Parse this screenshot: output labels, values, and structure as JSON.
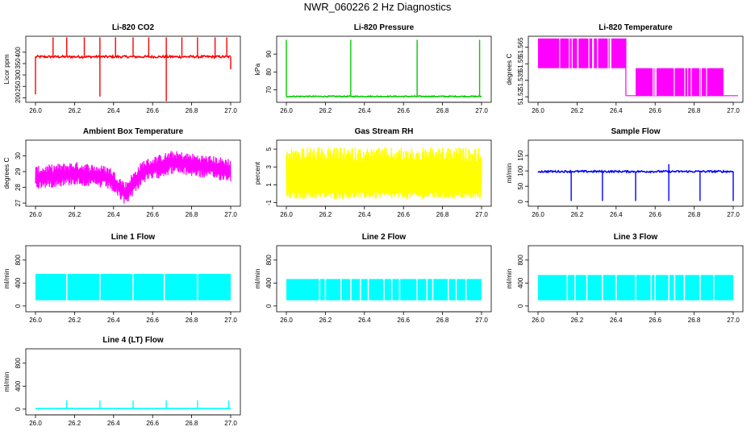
{
  "figure": {
    "title": "NWR_060226  2 Hz Diagnostics"
  },
  "chart_data": [
    {
      "id": "co2",
      "type": "line",
      "title": "Li-820 CO2",
      "ylabel": "Licor ppm",
      "color": "#ff0000",
      "xlim": [
        26.0,
        27.0
      ],
      "ylim": [
        180,
        470
      ],
      "xticks": [
        "26.0",
        "26.2",
        "26.4",
        "26.6",
        "26.8",
        "27.0"
      ],
      "yticks": [
        {
          "v": 200,
          "label": "200"
        },
        {
          "v": 250,
          "label": "250"
        },
        {
          "v": 300,
          "label": "300"
        },
        {
          "v": 350,
          "label": "350"
        },
        {
          "v": 400,
          "label": "400"
        }
      ],
      "series": {
        "kind": "base_spikes",
        "base": 380,
        "noise": 5,
        "spikes_up": [
          26.09,
          26.16,
          26.25,
          26.33,
          26.41,
          26.5,
          26.58,
          26.67,
          26.75,
          26.83,
          26.92,
          26.98
        ],
        "spike_up_to": 465,
        "spikes_down": [
          {
            "x": 26.0,
            "y": 215
          },
          {
            "x": 26.33,
            "y": 205
          },
          {
            "x": 26.67,
            "y": 185
          },
          {
            "x": 27.0,
            "y": 325
          }
        ]
      }
    },
    {
      "id": "pressure",
      "type": "line",
      "title": "Li-820 Pressure",
      "ylabel": "kPa",
      "color": "#00cc00",
      "xlim": [
        26.0,
        27.0
      ],
      "ylim": [
        63,
        100
      ],
      "xticks": [
        "26.0",
        "26.2",
        "26.4",
        "26.6",
        "26.8",
        "27.0"
      ],
      "yticks": [
        {
          "v": 70,
          "label": "70"
        },
        {
          "v": 80,
          "label": "80"
        },
        {
          "v": 90,
          "label": "90"
        }
      ],
      "series": {
        "kind": "base_spikes",
        "base": 66.3,
        "noise": 0.3,
        "spikes_up": [
          26.0,
          26.33,
          26.67,
          26.99
        ],
        "spike_up_to": 98,
        "spikes_down": []
      }
    },
    {
      "id": "temp820",
      "type": "step",
      "title": "Li-820 Temperature",
      "ylabel": "degrees C",
      "color": "#ff00ff",
      "xlim": [
        26.0,
        27.0
      ],
      "ylim": [
        51.515,
        51.575
      ],
      "xticks": [
        "26.0",
        "26.2",
        "26.4",
        "26.6",
        "26.8",
        "27.0"
      ],
      "yticks": [
        {
          "v": 51.52,
          "label": "51.52"
        },
        {
          "v": 51.535,
          "label": "51.535"
        },
        {
          "v": 51.55,
          "label": "51.55"
        },
        {
          "v": 51.565,
          "label": "51.565"
        }
      ],
      "series": {
        "kind": "two_level",
        "high": 51.573,
        "mid": 51.546,
        "low": 51.521,
        "switch_x": 26.45,
        "post_start": 26.5,
        "post_end": 26.95
      }
    },
    {
      "id": "ambient",
      "type": "line",
      "title": "Ambient Box Temperature",
      "ylabel": "degrees C",
      "color": "#ff00ff",
      "xlim": [
        26.0,
        27.0
      ],
      "ylim": [
        26.8,
        31.0
      ],
      "xticks": [
        "26.0",
        "26.2",
        "26.4",
        "26.6",
        "26.8",
        "27.0"
      ],
      "yticks": [
        {
          "v": 27,
          "label": "27"
        },
        {
          "v": 28,
          "label": "28"
        },
        {
          "v": 29,
          "label": "29"
        },
        {
          "v": 30,
          "label": "30"
        }
      ],
      "series": {
        "kind": "noise_trend",
        "center": [
          [
            26.0,
            28.6
          ],
          [
            26.2,
            28.9
          ],
          [
            26.38,
            28.6
          ],
          [
            26.46,
            27.6
          ],
          [
            26.55,
            29.0
          ],
          [
            26.7,
            29.6
          ],
          [
            27.0,
            29.1
          ]
        ],
        "amp": 0.75
      }
    },
    {
      "id": "rh",
      "type": "line",
      "title": "Gas Stream RH",
      "ylabel": "percent",
      "color": "#ffff00",
      "xlim": [
        26.0,
        27.0
      ],
      "ylim": [
        -1.4,
        6.0
      ],
      "xticks": [
        "26.0",
        "26.2",
        "26.4",
        "26.6",
        "26.8",
        "27.0"
      ],
      "yticks": [
        {
          "v": -1,
          "label": "-1"
        },
        {
          "v": 1,
          "label": "1"
        },
        {
          "v": 3,
          "label": "3"
        },
        {
          "v": 5,
          "label": "5"
        }
      ],
      "series": {
        "kind": "noise_band",
        "lo": -0.6,
        "hi": 5.2
      }
    },
    {
      "id": "sample",
      "type": "line",
      "title": "Sample Flow",
      "ylabel": "ml/min",
      "color": "#0000ff",
      "xlim": [
        26.0,
        27.0
      ],
      "ylim": [
        -15,
        200
      ],
      "xticks": [
        "26.0",
        "26.2",
        "26.4",
        "26.6",
        "26.8",
        "27.0"
      ],
      "yticks": [
        {
          "v": 0,
          "label": "0"
        },
        {
          "v": 50,
          "label": "50"
        },
        {
          "v": 100,
          "label": "100"
        },
        {
          "v": 150,
          "label": "150"
        }
      ],
      "series": {
        "kind": "base_spikes",
        "base": 98,
        "noise": 3,
        "spikes_up": [
          26.67
        ],
        "spike_up_to": 122,
        "spikes_down": [
          {
            "x": 26.17,
            "y": 2
          },
          {
            "x": 26.33,
            "y": 2
          },
          {
            "x": 26.5,
            "y": 2
          },
          {
            "x": 26.67,
            "y": 2
          },
          {
            "x": 26.83,
            "y": 2
          },
          {
            "x": 27.0,
            "y": 2
          }
        ]
      }
    },
    {
      "id": "line1",
      "type": "area",
      "title": "Line 1 Flow",
      "ylabel": "ml/min",
      "color": "#00ffff",
      "xlim": [
        26.0,
        27.0
      ],
      "ylim": [
        -100,
        1050
      ],
      "xticks": [
        "26.0",
        "26.2",
        "26.4",
        "26.6",
        "26.8",
        "27.0"
      ],
      "yticks": [
        {
          "v": 0,
          "label": "0"
        },
        {
          "v": 400,
          "label": "400"
        },
        {
          "v": 800,
          "label": "800"
        }
      ],
      "series": {
        "kind": "band_gaps",
        "lo": 100,
        "hi": 560,
        "gaps": [
          26.16,
          26.33,
          26.5,
          26.66,
          26.83
        ]
      }
    },
    {
      "id": "line2",
      "type": "area",
      "title": "Line 2 Flow",
      "ylabel": "ml/min",
      "color": "#00ffff",
      "xlim": [
        26.0,
        27.0
      ],
      "ylim": [
        -100,
        1050
      ],
      "xticks": [
        "26.0",
        "26.2",
        "26.4",
        "26.6",
        "26.8",
        "27.0"
      ],
      "yticks": [
        {
          "v": 0,
          "label": "0"
        },
        {
          "v": 400,
          "label": "400"
        },
        {
          "v": 800,
          "label": "800"
        }
      ],
      "series": {
        "kind": "band_gaps",
        "lo": 100,
        "hi": 470,
        "gaps": [
          26.17,
          26.2,
          26.28,
          26.33,
          26.38,
          26.42,
          26.5,
          26.54,
          26.58,
          26.67,
          26.72,
          26.75,
          26.83,
          26.87,
          26.92
        ]
      }
    },
    {
      "id": "line3",
      "type": "area",
      "title": "Line 3 Flow",
      "ylabel": "ml/min",
      "color": "#00ffff",
      "xlim": [
        26.0,
        27.0
      ],
      "ylim": [
        -100,
        1050
      ],
      "xticks": [
        "26.0",
        "26.2",
        "26.4",
        "26.6",
        "26.8",
        "27.0"
      ],
      "yticks": [
        {
          "v": 0,
          "label": "0"
        },
        {
          "v": 400,
          "label": "400"
        },
        {
          "v": 800,
          "label": "800"
        }
      ],
      "series": {
        "kind": "band_gaps",
        "lo": 100,
        "hi": 540,
        "gaps": [
          26.15,
          26.19,
          26.25,
          26.33,
          26.4,
          26.5,
          26.58,
          26.6,
          26.67,
          26.7,
          26.75,
          26.83,
          26.9
        ]
      }
    },
    {
      "id": "line4",
      "type": "line",
      "title": "Line 4 (LT) Flow",
      "ylabel": "ml/min",
      "color": "#00ffff",
      "xlim": [
        26.0,
        27.0
      ],
      "ylim": [
        -100,
        1050
      ],
      "xticks": [
        "26.0",
        "26.2",
        "26.4",
        "26.6",
        "26.8",
        "27.0"
      ],
      "yticks": [
        {
          "v": 0,
          "label": "0"
        },
        {
          "v": 400,
          "label": "400"
        },
        {
          "v": 800,
          "label": "800"
        }
      ],
      "series": {
        "kind": "base_spikes",
        "base": 10,
        "noise": 2,
        "spikes_up": [
          26.16,
          26.33,
          26.5,
          26.67,
          26.83,
          26.99
        ],
        "spike_up_to": 150,
        "spikes_down": []
      }
    }
  ]
}
